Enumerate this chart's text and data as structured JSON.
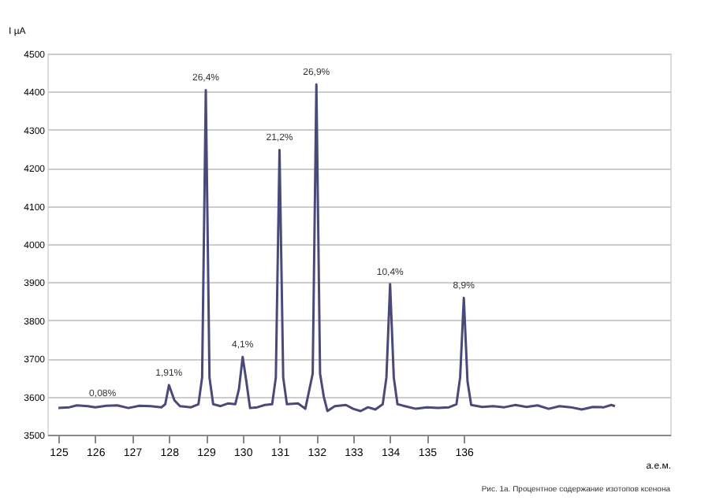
{
  "chart_data": {
    "type": "line",
    "title": "Рис. 1а. Процентное содержание изотопов ксенона",
    "xlabel": "а.е.м.",
    "ylabel": "I µA",
    "x": [
      125,
      125.3,
      125.5,
      125.8,
      126,
      126.3,
      126.6,
      126.9,
      127.2,
      127.5,
      127.8,
      127.9,
      128,
      128.15,
      128.3,
      128.6,
      128.8,
      128.9,
      129,
      129.1,
      129.2,
      129.4,
      129.6,
      129.8,
      129.9,
      130,
      130.1,
      130.2,
      130.4,
      130.6,
      130.8,
      130.9,
      131,
      131.1,
      131.2,
      131.5,
      131.7,
      131.9,
      132,
      132.1,
      132.2,
      132.3,
      132.5,
      132.8,
      133,
      133.2,
      133.4,
      133.6,
      133.8,
      133.9,
      134,
      134.1,
      134.2,
      134.4,
      134.7,
      135,
      135.3,
      135.6,
      135.8,
      135.9,
      136,
      136.1,
      136.2,
      136.5,
      136.8,
      137.1,
      137.4,
      137.7,
      138,
      138.3,
      138.6,
      138.9,
      139.2,
      139.5,
      139.8,
      140,
      140.1
    ],
    "series": [
      {
        "color": "#4a4a7a",
        "values": [
          3570,
          3572,
          3577,
          3575,
          3572,
          3576,
          3577,
          3570,
          3576,
          3575,
          3572,
          3580,
          3630,
          3590,
          3575,
          3572,
          3580,
          3650,
          4404,
          3650,
          3580,
          3575,
          3582,
          3580,
          3620,
          3704,
          3640,
          3570,
          3572,
          3578,
          3580,
          3650,
          4247,
          3650,
          3580,
          3582,
          3568,
          3660,
          4419,
          3660,
          3600,
          3562,
          3575,
          3578,
          3568,
          3562,
          3572,
          3566,
          3580,
          3650,
          3895,
          3650,
          3580,
          3575,
          3568,
          3572,
          3570,
          3572,
          3580,
          3650,
          3859,
          3640,
          3578,
          3573,
          3575,
          3572,
          3578,
          3573,
          3577,
          3568,
          3575,
          3572,
          3566,
          3573,
          3572,
          3578,
          3575
        ]
      }
    ],
    "xlim": [
      124.7,
      141.6
    ],
    "xticks": [
      125,
      126,
      127,
      128,
      129,
      130,
      131,
      132,
      133,
      134,
      135,
      136
    ],
    "ylim": [
      3500,
      4500
    ],
    "yticks": [
      3500,
      3600,
      3700,
      3800,
      3900,
      4000,
      4100,
      4200,
      4300,
      4400,
      4500
    ],
    "grid": "y",
    "legend": false,
    "annotations": [
      {
        "text": "0,08%",
        "x": 126.2,
        "y": 3577
      },
      {
        "text": "1,91%",
        "x": 128,
        "y": 3630
      },
      {
        "text": "26,4%",
        "x": 129,
        "y": 4404
      },
      {
        "text": "4,1%",
        "x": 130,
        "y": 3704
      },
      {
        "text": "21,2%",
        "x": 131,
        "y": 4247
      },
      {
        "text": "26,9%",
        "x": 132,
        "y": 4419
      },
      {
        "text": "10,4%",
        "x": 134,
        "y": 3895
      },
      {
        "text": "8,9%",
        "x": 136,
        "y": 3859
      }
    ]
  }
}
